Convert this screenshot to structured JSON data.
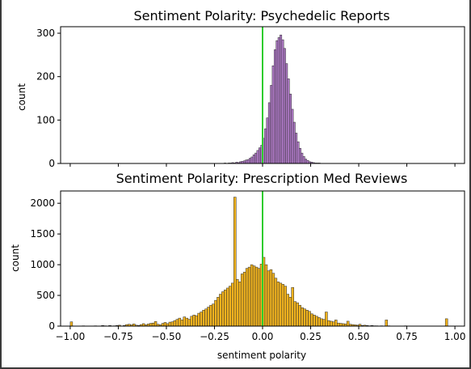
{
  "chart_data": [
    {
      "type": "bar",
      "title": "Sentiment Polarity: Psychedelic Reports",
      "xlabel": "",
      "ylabel": "count",
      "xlim": [
        -1.05,
        1.05
      ],
      "ylim": [
        0,
        315
      ],
      "yticks": [
        0,
        100,
        200,
        300
      ],
      "xticks": [
        -1.0,
        -0.75,
        -0.5,
        -0.25,
        0.0,
        0.25,
        0.5,
        0.75,
        1.0
      ],
      "xtick_labels_visible": false,
      "grid": false,
      "bar_color": "#b07ac8",
      "edge_color": "#2a2a2a",
      "marker_line": {
        "x": 0.0,
        "color": "#2ecc2e"
      },
      "bin_width": 0.01,
      "bins_start": [
        -0.2,
        -0.19,
        -0.18,
        -0.17,
        -0.16,
        -0.15,
        -0.14,
        -0.13,
        -0.12,
        -0.11,
        -0.1,
        -0.09,
        -0.08,
        -0.07,
        -0.06,
        -0.05,
        -0.04,
        -0.03,
        -0.02,
        -0.01,
        0.0,
        0.01,
        0.02,
        0.03,
        0.04,
        0.05,
        0.06,
        0.07,
        0.08,
        0.09,
        0.1,
        0.11,
        0.12,
        0.13,
        0.14,
        0.15,
        0.16,
        0.17,
        0.18,
        0.19,
        0.2,
        0.21,
        0.22,
        0.23,
        0.24,
        0.25,
        0.26,
        0.27,
        0.28,
        0.29
      ],
      "values": [
        1,
        0,
        1,
        1,
        2,
        1,
        3,
        2,
        4,
        5,
        6,
        8,
        9,
        12,
        15,
        20,
        24,
        30,
        36,
        42,
        58,
        80,
        105,
        140,
        180,
        225,
        262,
        283,
        290,
        296,
        285,
        265,
        230,
        195,
        160,
        125,
        95,
        70,
        50,
        35,
        24,
        16,
        10,
        7,
        4,
        3,
        2,
        1,
        1,
        1
      ]
    },
    {
      "type": "bar",
      "title": "Sentiment Polarity: Prescription Med Reviews",
      "xlabel": "sentiment polarity",
      "ylabel": "count",
      "xlim": [
        -1.05,
        1.05
      ],
      "ylim": [
        0,
        2200
      ],
      "yticks": [
        0,
        500,
        1000,
        1500,
        2000
      ],
      "xticks": [
        -1.0,
        -0.75,
        -0.5,
        -0.25,
        0.0,
        0.25,
        0.5,
        0.75,
        1.0
      ],
      "xtick_labels": [
        "−1.00",
        "−0.75",
        "−0.50",
        "−0.25",
        "0.00",
        "0.25",
        "0.50",
        "0.75",
        "1.00"
      ],
      "grid": false,
      "bar_color": "#f0b21e",
      "edge_color": "#2a2a2a",
      "marker_line": {
        "x": 0.0,
        "color": "#2ecc2e"
      },
      "bin_width": 0.0125,
      "bins_start_from": -1.0,
      "values": [
        70,
        0,
        0,
        0,
        0,
        5,
        0,
        0,
        0,
        0,
        5,
        0,
        0,
        10,
        5,
        0,
        10,
        0,
        5,
        10,
        15,
        0,
        10,
        25,
        30,
        20,
        35,
        15,
        10,
        25,
        40,
        20,
        35,
        45,
        50,
        75,
        30,
        20,
        45,
        60,
        40,
        65,
        70,
        90,
        110,
        130,
        100,
        150,
        130,
        110,
        160,
        180,
        170,
        210,
        230,
        260,
        280,
        310,
        340,
        360,
        420,
        470,
        520,
        560,
        590,
        620,
        650,
        700,
        2100,
        760,
        720,
        850,
        880,
        940,
        960,
        1000,
        980,
        960,
        940,
        1010,
        1120,
        1000,
        900,
        920,
        860,
        780,
        720,
        700,
        680,
        650,
        520,
        470,
        630,
        400,
        380,
        340,
        300,
        280,
        260,
        240,
        200,
        180,
        160,
        140,
        120,
        110,
        230,
        90,
        80,
        70,
        100,
        50,
        45,
        40,
        35,
        80,
        30,
        25,
        20,
        15,
        30,
        10,
        15,
        10,
        5,
        10,
        5,
        5,
        0,
        5,
        0,
        100,
        5,
        0,
        0,
        0,
        0,
        0,
        0,
        5,
        0,
        0,
        0,
        0,
        0,
        0,
        0,
        0,
        0,
        0,
        0,
        0,
        0,
        0,
        0,
        0,
        120
      ]
    }
  ]
}
